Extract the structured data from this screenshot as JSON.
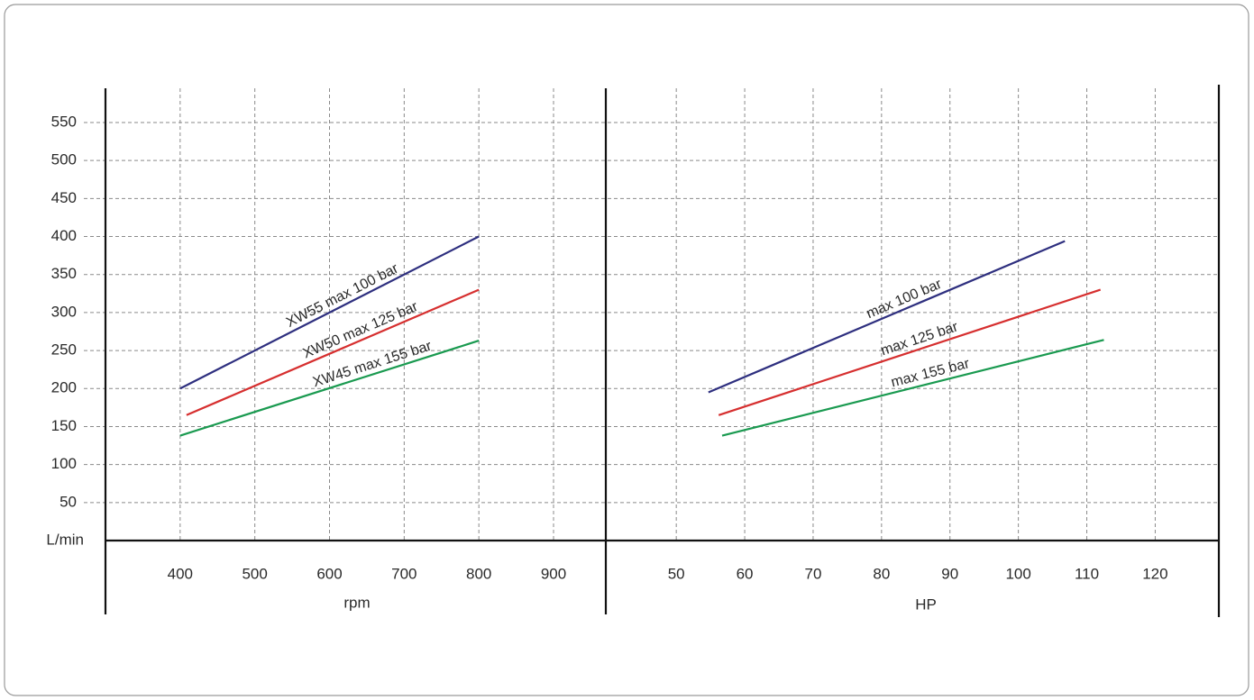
{
  "chart_data": [
    {
      "type": "line",
      "x_label": "rpm",
      "y_label": "L/min",
      "xlim": [
        300,
        970
      ],
      "ylim": [
        0,
        595
      ],
      "xticks": [
        400,
        500,
        600,
        700,
        800,
        900
      ],
      "yticks": [
        50,
        100,
        150,
        200,
        250,
        300,
        350,
        400,
        450,
        500,
        550
      ],
      "grid": true,
      "series": [
        {
          "name": "XW55 max 100 bar",
          "color": "#2e2f7f",
          "x": [
            400,
            800
          ],
          "values": [
            200,
            400
          ]
        },
        {
          "name": "XW50 max 125 bar",
          "color": "#d62f2f",
          "x": [
            408.5,
            800
          ],
          "values": [
            165,
            330
          ]
        },
        {
          "name": "XW45 max 155 bar",
          "color": "#1a9a50",
          "x": [
            400,
            800
          ],
          "values": [
            138,
            263
          ]
        }
      ]
    },
    {
      "type": "line",
      "x_label": "HP",
      "xlim": [
        39.7,
        129.3
      ],
      "xticks": [
        50,
        60,
        70,
        80,
        90,
        100,
        110,
        120
      ],
      "grid": true,
      "series": [
        {
          "name": "max 100 bar",
          "color": "#2e2f7f",
          "x": [
            54.7,
            106.8
          ],
          "values": [
            195,
            394
          ]
        },
        {
          "name": "max 125 bar",
          "color": "#d62f2f",
          "x": [
            56.2,
            112.0
          ],
          "values": [
            165,
            330
          ]
        },
        {
          "name": "max 155 bar",
          "color": "#1a9a50",
          "x": [
            56.7,
            112.5
          ],
          "values": [
            138,
            264
          ]
        }
      ]
    }
  ]
}
